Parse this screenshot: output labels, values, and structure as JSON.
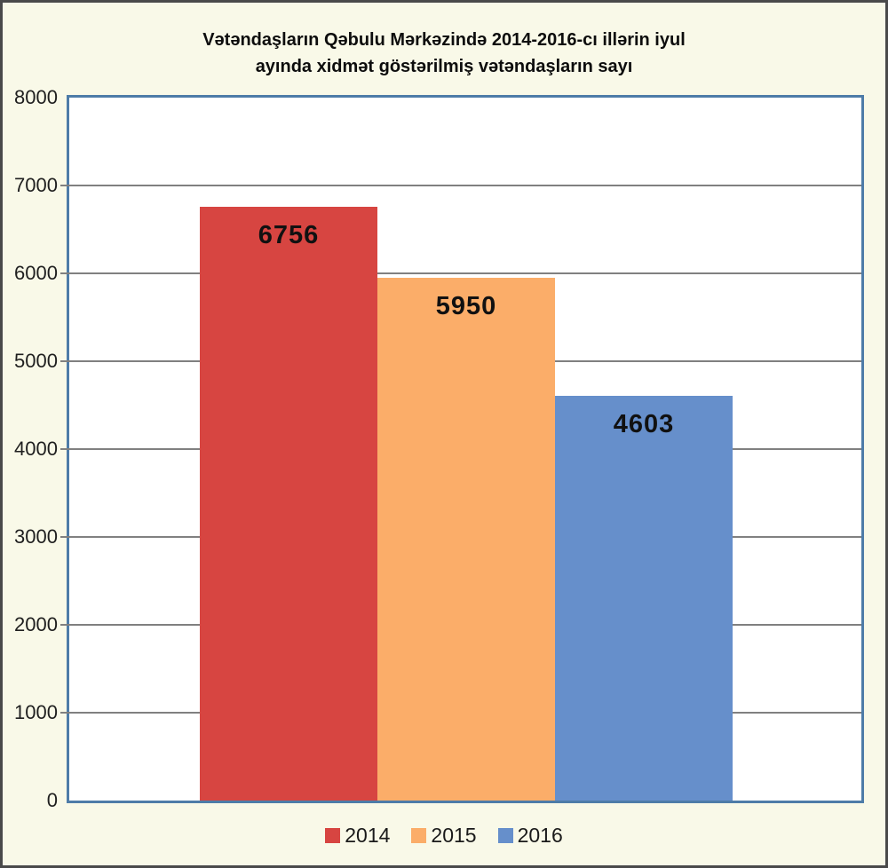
{
  "header": {
    "line1": "Vətəndaşların Qəbulu Mərkəzində 2014-2016-cı illərin iyul",
    "line2": "ayında xidmət göstərilmiş vətəndaşların sayı"
  },
  "chart_data": {
    "type": "bar",
    "title": "Vətəndaşların Qəbulu Mərkəzində 2014-2016-cı illərin iyul ayında xidmət göstərilmiş vətəndaşların sayı",
    "categories": [
      "2014",
      "2015",
      "2016"
    ],
    "values": [
      6756,
      5950,
      4603
    ],
    "colors": [
      "#d74541",
      "#fbad69",
      "#668fcb"
    ],
    "xlabel": "",
    "ylabel": "",
    "ylim": [
      0,
      8000
    ],
    "yticks": [
      0,
      1000,
      2000,
      3000,
      4000,
      5000,
      6000,
      7000,
      8000
    ],
    "grid": true,
    "legend_position": "bottom",
    "legend": [
      {
        "label": "2014",
        "color": "#d74541"
      },
      {
        "label": "2015",
        "color": "#fbad69"
      },
      {
        "label": "2016",
        "color": "#668fcb"
      }
    ],
    "background_color": "#f9f9e8",
    "plot_background_color": "#ffffff",
    "plot_border_color": "#4e7ca8",
    "gridline_color": "#808080"
  }
}
